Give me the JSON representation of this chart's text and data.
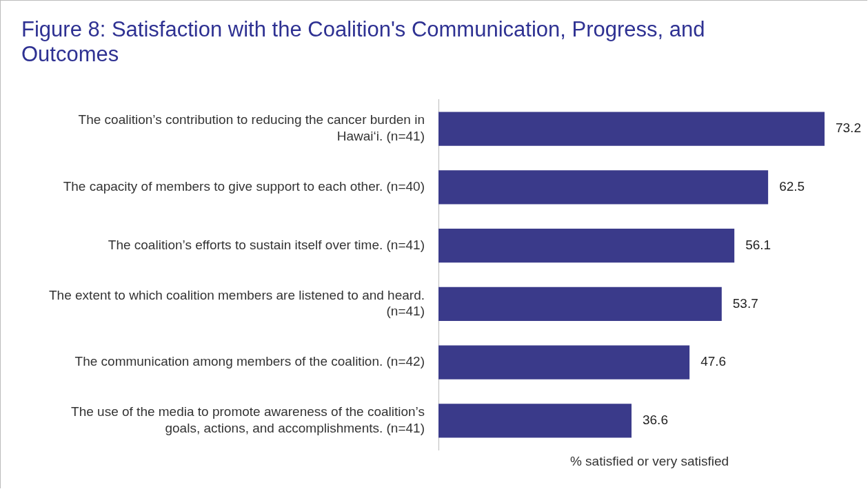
{
  "chart_data": {
    "type": "bar",
    "orientation": "horizontal",
    "title": "Figure 8: Satisfaction with the Coalition's Communication, Progress, and Outcomes",
    "xlabel": "% satisfied or very satisfied",
    "categories": [
      "The coalition’s contribution to reducing the cancer burden in Hawai‘i. (n=41)",
      "The capacity of members to give support to each other. (n=40)",
      "The coalition’s efforts to sustain itself over time. (n=41)",
      "The extent to which coalition members are listened to and heard. (n=41)",
      "The communication among members of the coalition. (n=42)",
      "The use of the media to promote awareness of the coalition’s goals, actions, and accomplishments. (n=41)"
    ],
    "values": [
      73.2,
      62.5,
      56.1,
      53.7,
      47.6,
      36.6
    ],
    "color": "#3a3a8a",
    "tick_labels": "y",
    "data_labels": true,
    "grid": false,
    "legend": false
  }
}
